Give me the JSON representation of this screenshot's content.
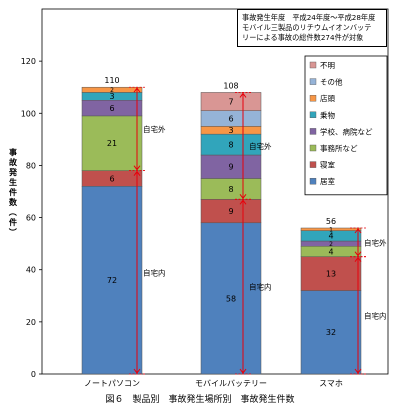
{
  "caption": "図６　製品別　事故発生場所別　事故発生件数",
  "note": {
    "lines": [
      "事故発生年度　平成24年度～平成28年度",
      "モバイル三製品のリチウムイオンバッテ",
      "リーによる事故の総件数274件が対象"
    ]
  },
  "labels": {
    "outside": "自宅外",
    "inside": "自宅内"
  },
  "chart_data": {
    "type": "bar",
    "stacked": true,
    "categories": [
      "ノートパソコン",
      "モバイルバッテリー",
      "スマホ"
    ],
    "ylabel": "事故発生件数（件）",
    "ylim": [
      0,
      140
    ],
    "yticks": [
      0,
      20,
      40,
      60,
      80,
      100,
      120
    ],
    "grid": false,
    "legend_position": "top-right",
    "totals": [
      110,
      108,
      56
    ],
    "series": [
      {
        "name": "居室",
        "color": "#4f81bd",
        "values": [
          72,
          58,
          32
        ]
      },
      {
        "name": "寝室",
        "color": "#c0504d",
        "values": [
          6,
          9,
          13
        ]
      },
      {
        "name": "事務所など",
        "color": "#9bbb59",
        "values": [
          21,
          8,
          4
        ]
      },
      {
        "name": "学校、病院など",
        "color": "#8064a2",
        "values": [
          6,
          9,
          2
        ]
      },
      {
        "name": "乗物",
        "color": "#31a5bb",
        "values": [
          3,
          8,
          4
        ]
      },
      {
        "name": "店頭",
        "color": "#f79646",
        "values": [
          2,
          3,
          1
        ]
      },
      {
        "name": "その他",
        "color": "#95b3d7",
        "values": [
          0,
          6,
          0
        ]
      },
      {
        "name": "不明",
        "color": "#d99694",
        "values": [
          0,
          7,
          0
        ]
      }
    ],
    "ranges": [
      {
        "category": "ノートパソコン",
        "inside": [
          0,
          78
        ],
        "outside": [
          78,
          110
        ]
      },
      {
        "category": "モバイルバッテリー",
        "inside": [
          0,
          67
        ],
        "outside": [
          67,
          108
        ]
      },
      {
        "category": "スマホ",
        "inside": [
          0,
          45
        ],
        "outside": [
          45,
          56
        ]
      }
    ]
  }
}
